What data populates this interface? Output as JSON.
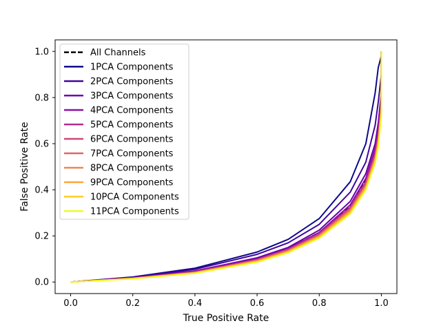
{
  "chart_data": {
    "type": "line",
    "title": "",
    "xlabel": "True Positive Rate",
    "ylabel": "False Positive Rate",
    "xlim": [
      -0.05,
      1.05
    ],
    "ylim": [
      -0.05,
      1.05
    ],
    "xticks": [
      0.0,
      0.2,
      0.4,
      0.6,
      0.8,
      1.0
    ],
    "yticks": [
      0.0,
      0.2,
      0.4,
      0.6,
      0.8,
      1.0
    ],
    "xtick_labels": [
      "0.0",
      "0.2",
      "0.4",
      "0.6",
      "0.8",
      "1.0"
    ],
    "ytick_labels": [
      "0.0",
      "0.2",
      "0.4",
      "0.6",
      "0.8",
      "1.0"
    ],
    "grid": false,
    "legend_placement": "upper-left",
    "series": [
      {
        "name": "All Channels",
        "color": "#000000",
        "dashed": true,
        "x": [
          0,
          0.2,
          0.4,
          0.6,
          0.7,
          0.8,
          0.9,
          0.95,
          0.98,
          0.99,
          1.0,
          1.0
        ],
        "y": [
          0,
          0.018,
          0.045,
          0.1,
          0.145,
          0.215,
          0.33,
          0.44,
          0.56,
          0.64,
          0.78,
          1.0
        ]
      },
      {
        "name": "1PCA Components",
        "color": "#0d0887",
        "dashed": false,
        "x": [
          0,
          0.2,
          0.4,
          0.6,
          0.7,
          0.8,
          0.9,
          0.95,
          0.98,
          0.99,
          1.0,
          1.0
        ],
        "y": [
          0,
          0.022,
          0.06,
          0.13,
          0.185,
          0.275,
          0.435,
          0.6,
          0.82,
          0.93,
          0.98,
          1.0
        ]
      },
      {
        "name": "2PCA Components",
        "color": "#41049d",
        "dashed": false,
        "x": [
          0,
          0.2,
          0.4,
          0.6,
          0.7,
          0.8,
          0.9,
          0.95,
          0.98,
          0.99,
          1.0,
          1.0
        ],
        "y": [
          0,
          0.02,
          0.055,
          0.12,
          0.17,
          0.25,
          0.39,
          0.52,
          0.68,
          0.78,
          0.9,
          1.0
        ]
      },
      {
        "name": "3PCA Components",
        "color": "#6a00a8",
        "dashed": false,
        "x": [
          0,
          0.2,
          0.4,
          0.6,
          0.7,
          0.8,
          0.9,
          0.95,
          0.98,
          0.99,
          1.0,
          1.0
        ],
        "y": [
          0,
          0.019,
          0.048,
          0.105,
          0.15,
          0.225,
          0.35,
          0.47,
          0.6,
          0.69,
          0.82,
          1.0
        ]
      },
      {
        "name": "4PCA Components",
        "color": "#8f0da4",
        "dashed": false,
        "x": [
          0,
          0.2,
          0.4,
          0.6,
          0.7,
          0.8,
          0.9,
          0.95,
          0.98,
          0.99,
          1.0,
          1.0
        ],
        "y": [
          0,
          0.018,
          0.046,
          0.1,
          0.145,
          0.215,
          0.335,
          0.45,
          0.58,
          0.66,
          0.8,
          1.0
        ]
      },
      {
        "name": "5PCA Components",
        "color": "#b12a90",
        "dashed": false,
        "x": [
          0,
          0.2,
          0.4,
          0.6,
          0.7,
          0.8,
          0.9,
          0.95,
          0.98,
          0.99,
          1.0,
          1.0
        ],
        "y": [
          0,
          0.017,
          0.044,
          0.098,
          0.142,
          0.21,
          0.325,
          0.435,
          0.56,
          0.64,
          0.78,
          1.0
        ]
      },
      {
        "name": "6PCA Components",
        "color": "#cc4778",
        "dashed": false,
        "x": [
          0,
          0.2,
          0.4,
          0.6,
          0.7,
          0.8,
          0.9,
          0.95,
          0.98,
          0.99,
          1.0,
          1.0
        ],
        "y": [
          0,
          0.017,
          0.043,
          0.096,
          0.14,
          0.207,
          0.32,
          0.43,
          0.55,
          0.63,
          0.77,
          1.0
        ]
      },
      {
        "name": "7PCA Components",
        "color": "#e16462",
        "dashed": false,
        "x": [
          0,
          0.2,
          0.4,
          0.6,
          0.7,
          0.8,
          0.9,
          0.95,
          0.98,
          0.99,
          1.0,
          1.0
        ],
        "y": [
          0,
          0.016,
          0.042,
          0.094,
          0.137,
          0.203,
          0.315,
          0.42,
          0.54,
          0.62,
          0.76,
          1.0
        ]
      },
      {
        "name": "8PCA Components",
        "color": "#f2844b",
        "dashed": false,
        "x": [
          0,
          0.2,
          0.4,
          0.6,
          0.7,
          0.8,
          0.9,
          0.95,
          0.98,
          0.99,
          1.0,
          1.0
        ],
        "y": [
          0,
          0.016,
          0.041,
          0.092,
          0.134,
          0.2,
          0.31,
          0.415,
          0.535,
          0.61,
          0.75,
          1.0
        ]
      },
      {
        "name": "9PCA Components",
        "color": "#fca636",
        "dashed": false,
        "x": [
          0,
          0.2,
          0.4,
          0.6,
          0.7,
          0.8,
          0.9,
          0.95,
          0.98,
          0.99,
          1.0,
          1.0
        ],
        "y": [
          0,
          0.015,
          0.04,
          0.09,
          0.132,
          0.197,
          0.305,
          0.41,
          0.53,
          0.6,
          0.74,
          1.0
        ]
      },
      {
        "name": "10PCA Components",
        "color": "#fccd25",
        "dashed": false,
        "x": [
          0,
          0.2,
          0.4,
          0.6,
          0.7,
          0.8,
          0.9,
          0.95,
          0.98,
          0.99,
          1.0,
          1.0
        ],
        "y": [
          0,
          0.015,
          0.039,
          0.088,
          0.13,
          0.194,
          0.3,
          0.405,
          0.52,
          0.59,
          0.73,
          1.0
        ]
      },
      {
        "name": "11PCA Components",
        "color": "#f0f921",
        "dashed": false,
        "x": [
          0,
          0.2,
          0.4,
          0.6,
          0.7,
          0.8,
          0.9,
          0.95,
          0.98,
          0.99,
          1.0,
          1.0
        ],
        "y": [
          0,
          0.014,
          0.038,
          0.086,
          0.127,
          0.19,
          0.295,
          0.4,
          0.515,
          0.585,
          0.72,
          1.0
        ]
      }
    ]
  }
}
